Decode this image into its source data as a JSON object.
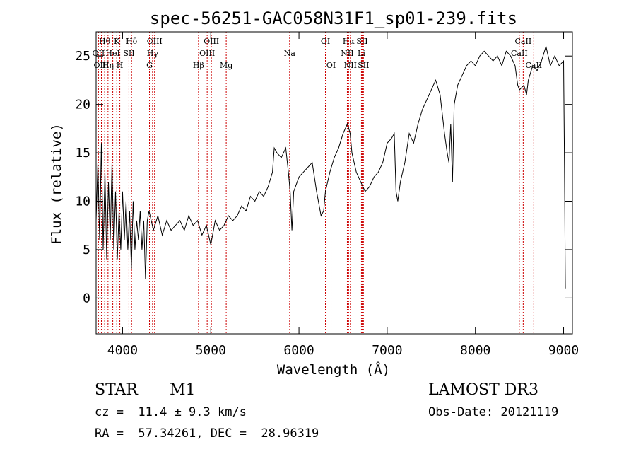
{
  "chart_data": {
    "type": "line",
    "title": "spec-56251-GAC058N31F1_sp01-239.fits",
    "xlabel": "Wavelength (Å)",
    "ylabel": "Flux (relative)",
    "xlim": [
      3700,
      9100
    ],
    "ylim": [
      -3.7,
      27.5
    ],
    "x_ticks": [
      4000,
      5000,
      6000,
      7000,
      8000,
      9000
    ],
    "y_ticks": [
      0,
      5,
      10,
      15,
      20,
      25
    ],
    "grid": false,
    "line_color": "#000000",
    "marker_color": "#cc0000",
    "spectrum": {
      "name": "flux",
      "points": [
        [
          3700,
          8
        ],
        [
          3720,
          14
        ],
        [
          3740,
          6
        ],
        [
          3760,
          16
        ],
        [
          3780,
          5
        ],
        [
          3800,
          13
        ],
        [
          3820,
          4
        ],
        [
          3840,
          12
        ],
        [
          3860,
          6
        ],
        [
          3880,
          14
        ],
        [
          3900,
          5
        ],
        [
          3920,
          11
        ],
        [
          3940,
          4
        ],
        [
          3960,
          9
        ],
        [
          3980,
          5
        ],
        [
          4000,
          11
        ],
        [
          4020,
          6
        ],
        [
          4040,
          10
        ],
        [
          4060,
          5
        ],
        [
          4080,
          9
        ],
        [
          4100,
          3
        ],
        [
          4120,
          10
        ],
        [
          4140,
          5
        ],
        [
          4160,
          8
        ],
        [
          4180,
          6
        ],
        [
          4200,
          9
        ],
        [
          4220,
          5
        ],
        [
          4240,
          8
        ],
        [
          4260,
          2
        ],
        [
          4280,
          8
        ],
        [
          4300,
          9
        ],
        [
          4350,
          7
        ],
        [
          4400,
          8.5
        ],
        [
          4450,
          6.5
        ],
        [
          4500,
          8
        ],
        [
          4550,
          7
        ],
        [
          4600,
          7.5
        ],
        [
          4650,
          8
        ],
        [
          4700,
          7
        ],
        [
          4750,
          8.5
        ],
        [
          4800,
          7.5
        ],
        [
          4850,
          8
        ],
        [
          4900,
          6.5
        ],
        [
          4950,
          7.5
        ],
        [
          5000,
          5.5
        ],
        [
          5050,
          8
        ],
        [
          5100,
          7
        ],
        [
          5150,
          7.5
        ],
        [
          5200,
          8.5
        ],
        [
          5250,
          8
        ],
        [
          5300,
          8.5
        ],
        [
          5350,
          9.5
        ],
        [
          5400,
          9
        ],
        [
          5450,
          10.5
        ],
        [
          5500,
          10
        ],
        [
          5550,
          11
        ],
        [
          5600,
          10.5
        ],
        [
          5650,
          11.5
        ],
        [
          5700,
          13
        ],
        [
          5720,
          15.5
        ],
        [
          5750,
          15
        ],
        [
          5800,
          14.5
        ],
        [
          5850,
          15.5
        ],
        [
          5880,
          13
        ],
        [
          5900,
          11
        ],
        [
          5920,
          7
        ],
        [
          5940,
          11
        ],
        [
          5980,
          12
        ],
        [
          6000,
          12.5
        ],
        [
          6050,
          13
        ],
        [
          6100,
          13.5
        ],
        [
          6150,
          14
        ],
        [
          6200,
          11
        ],
        [
          6250,
          8.5
        ],
        [
          6280,
          9
        ],
        [
          6300,
          11
        ],
        [
          6350,
          13
        ],
        [
          6400,
          14.5
        ],
        [
          6450,
          15.5
        ],
        [
          6500,
          17
        ],
        [
          6550,
          18
        ],
        [
          6580,
          17
        ],
        [
          6600,
          15
        ],
        [
          6650,
          13
        ],
        [
          6700,
          12
        ],
        [
          6750,
          11
        ],
        [
          6800,
          11.5
        ],
        [
          6850,
          12.5
        ],
        [
          6900,
          13
        ],
        [
          6950,
          14
        ],
        [
          7000,
          16
        ],
        [
          7050,
          16.5
        ],
        [
          7080,
          17
        ],
        [
          7100,
          11
        ],
        [
          7120,
          10
        ],
        [
          7150,
          12
        ],
        [
          7200,
          14
        ],
        [
          7250,
          17
        ],
        [
          7300,
          16
        ],
        [
          7350,
          18
        ],
        [
          7400,
          19.5
        ],
        [
          7450,
          20.5
        ],
        [
          7500,
          21.5
        ],
        [
          7550,
          22.5
        ],
        [
          7600,
          21
        ],
        [
          7650,
          17
        ],
        [
          7680,
          15
        ],
        [
          7700,
          14
        ],
        [
          7720,
          18
        ],
        [
          7740,
          12
        ],
        [
          7760,
          20
        ],
        [
          7800,
          22
        ],
        [
          7850,
          23
        ],
        [
          7900,
          24
        ],
        [
          7950,
          24.5
        ],
        [
          8000,
          24
        ],
        [
          8050,
          25
        ],
        [
          8100,
          25.5
        ],
        [
          8150,
          25
        ],
        [
          8200,
          24.5
        ],
        [
          8250,
          25
        ],
        [
          8300,
          24
        ],
        [
          8350,
          25.5
        ],
        [
          8400,
          25
        ],
        [
          8450,
          24
        ],
        [
          8480,
          22
        ],
        [
          8500,
          21.5
        ],
        [
          8550,
          22
        ],
        [
          8580,
          21
        ],
        [
          8600,
          22.5
        ],
        [
          8650,
          24
        ],
        [
          8700,
          23.5
        ],
        [
          8750,
          24.5
        ],
        [
          8800,
          26
        ],
        [
          8850,
          24
        ],
        [
          8900,
          25
        ],
        [
          8950,
          24
        ],
        [
          9000,
          24.5
        ],
        [
          9010,
          13.5
        ],
        [
          9020,
          1
        ]
      ]
    },
    "line_markers": [
      {
        "label": "Hθ",
        "wl": 3797,
        "row": 1
      },
      {
        "label": "OII",
        "wl": 3727,
        "row": 2
      },
      {
        "label": "OIII",
        "wl": 3760,
        "row": 3
      },
      {
        "label": "K",
        "wl": 3934,
        "row": 1
      },
      {
        "label": "HeI",
        "wl": 3889,
        "row": 2
      },
      {
        "label": "Hη",
        "wl": 3835,
        "row": 3
      },
      {
        "label": "SII",
        "wl": 4072,
        "row": 2
      },
      {
        "label": "H",
        "wl": 3969,
        "row": 3
      },
      {
        "label": "Hδ",
        "wl": 4102,
        "row": 1
      },
      {
        "label": "OIII",
        "wl": 4363,
        "row": 1
      },
      {
        "label": "Hγ",
        "wl": 4340,
        "row": 2
      },
      {
        "label": "G",
        "wl": 4305,
        "row": 3
      },
      {
        "label": "OIII",
        "wl": 5007,
        "row": 1
      },
      {
        "label": "OIII",
        "wl": 4959,
        "row": 2
      },
      {
        "label": "Hβ",
        "wl": 4861,
        "row": 3
      },
      {
        "label": "Mg",
        "wl": 5175,
        "row": 3
      },
      {
        "label": "Na",
        "wl": 5894,
        "row": 2
      },
      {
        "label": "OI",
        "wl": 6300,
        "row": 1
      },
      {
        "label": "OI",
        "wl": 6364,
        "row": 3
      },
      {
        "label": "Hα",
        "wl": 6563,
        "row": 1
      },
      {
        "label": "SII",
        "wl": 6716,
        "row": 1
      },
      {
        "label": "NII",
        "wl": 6548,
        "row": 2
      },
      {
        "label": "Li",
        "wl": 6708,
        "row": 2
      },
      {
        "label": "NII",
        "wl": 6583,
        "row": 3
      },
      {
        "label": "SII",
        "wl": 6731,
        "row": 3
      },
      {
        "label": "CaII",
        "wl": 8542,
        "row": 1
      },
      {
        "label": "CaII",
        "wl": 8498,
        "row": 2
      },
      {
        "label": "CaII",
        "wl": 8662,
        "row": 3
      }
    ]
  },
  "info": {
    "object_class": "STAR",
    "subclass": "M1",
    "redshift": "cz =  11.4 ± 9.3 km/s",
    "coords": "RA =  57.34261, DEC =  28.96319",
    "survey": "LAMOST DR3",
    "obs_date": "Obs-Date: 20121119"
  }
}
